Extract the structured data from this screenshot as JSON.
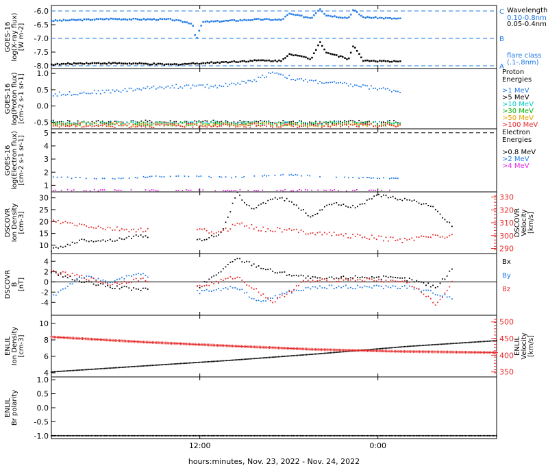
{
  "figure": {
    "time_axis": {
      "start": "2022-11-23T02:00",
      "end": "2022-11-24T08:00",
      "tick_labels": [
        "12:00",
        "0:00"
      ],
      "tick_times": [
        "2022-11-23T12:00",
        "2022-11-24T00:00"
      ],
      "xlabel": "hours:minutes, Nov. 23, 2022 - Nov. 24, 2022"
    }
  },
  "chart_data": [
    {
      "type": "line",
      "panel": "xray",
      "ylabel": [
        "GOES-16",
        "log(X-ray flux)",
        "[W m-2]"
      ],
      "ylim": [
        -8.1,
        -5.8
      ],
      "yticks": [
        "-6.0",
        "-6.5",
        "-7.0",
        "-7.5",
        "-8.0"
      ],
      "reference_lines": [
        {
          "y": -6.0,
          "label": "C"
        },
        {
          "y": -7.0,
          "label": "B"
        },
        {
          "y": -8.0,
          "label": "A"
        }
      ],
      "legend": [
        "Wavelength",
        "0.10-0.8nm",
        "0.05-0.4nm",
        "flare class",
        "(.1-.8nm)"
      ],
      "series": [
        {
          "name": "0.10-0.8nm",
          "color": "#1e78e6",
          "x": [
            "2022-11-23T02:00",
            "2022-11-23T04:00",
            "2022-11-23T06:00",
            "2022-11-23T08:00",
            "2022-11-23T10:00",
            "2022-11-23T11:30",
            "2022-11-23T11:45",
            "2022-11-23T12:10",
            "2022-11-23T14:00",
            "2022-11-23T16:00",
            "2022-11-23T17:30",
            "2022-11-23T18:00",
            "2022-11-23T19:30",
            "2022-11-23T20:05",
            "2022-11-23T20:30",
            "2022-11-23T22:00",
            "2022-11-23T22:20",
            "2022-11-23T23:00",
            "2022-11-24T01:30"
          ],
          "y": [
            -6.35,
            -6.32,
            -6.28,
            -6.3,
            -6.3,
            -6.45,
            -7.05,
            -6.4,
            -6.35,
            -6.3,
            -6.32,
            -6.1,
            -6.25,
            -5.9,
            -6.15,
            -6.25,
            -5.95,
            -6.22,
            -6.28
          ]
        },
        {
          "name": "0.05-0.4nm",
          "color": "#000000",
          "x": [
            "2022-11-23T02:00",
            "2022-11-23T04:00",
            "2022-11-23T06:00",
            "2022-11-23T08:00",
            "2022-11-23T10:00",
            "2022-11-23T12:00",
            "2022-11-23T14:00",
            "2022-11-23T16:00",
            "2022-11-23T17:30",
            "2022-11-23T18:00",
            "2022-11-23T19:30",
            "2022-11-23T20:05",
            "2022-11-23T20:30",
            "2022-11-23T22:00",
            "2022-11-23T22:20",
            "2022-11-23T23:00",
            "2022-11-24T01:30"
          ],
          "y": [
            -7.95,
            -7.9,
            -7.9,
            -7.92,
            -7.95,
            -7.9,
            -7.85,
            -7.8,
            -7.82,
            -7.55,
            -7.75,
            -7.1,
            -7.5,
            -7.75,
            -7.25,
            -7.8,
            -7.85
          ]
        }
      ]
    },
    {
      "type": "scatter",
      "panel": "proton",
      "ylabel": [
        "GOES-16",
        "log(Proton flux)",
        "[cm-2 s-1 sr-1]"
      ],
      "ylim": [
        -0.7,
        1.15
      ],
      "yticks": [
        "1.0",
        "0.5",
        "0.0",
        "-0.5"
      ],
      "legend_title": [
        "Proton",
        "Energies"
      ],
      "series": [
        {
          "name": ">1 MeV",
          "color": "#1e78e6",
          "x": [
            "2022-11-23T02:00",
            "2022-11-23T06:00",
            "2022-11-23T10:00",
            "2022-11-23T13:00",
            "2022-11-23T15:30",
            "2022-11-23T17:00",
            "2022-11-23T18:30",
            "2022-11-23T21:00",
            "2022-11-23T23:00",
            "2022-11-24T01:30"
          ],
          "y": [
            0.35,
            0.45,
            0.6,
            0.6,
            0.75,
            1.05,
            0.8,
            0.7,
            0.6,
            0.45
          ]
        },
        {
          "name": ">5 MeV",
          "color": "#000000",
          "x": [
            "2022-11-23T02:00",
            "2022-11-24T01:30"
          ],
          "y": [
            -0.5,
            -0.5
          ]
        },
        {
          "name": ">10 MeV",
          "color": "#00c8c8",
          "x": [
            "2022-11-23T02:00",
            "2022-11-24T01:30"
          ],
          "y": [
            -0.52,
            -0.52
          ]
        },
        {
          "name": ">30 MeV",
          "color": "#00b400",
          "x": [
            "2022-11-23T02:00",
            "2022-11-24T01:30"
          ],
          "y": [
            -0.55,
            -0.55
          ]
        },
        {
          "name": ">50 MeV",
          "color": "#e6a000",
          "x": [
            "2022-11-23T02:00",
            "2022-11-24T01:30"
          ],
          "y": [
            -0.57,
            -0.57
          ]
        },
        {
          "name": ">100 MeV",
          "color": "#e62828",
          "x": [
            "2022-11-23T02:00",
            "2022-11-24T01:30"
          ],
          "y": [
            -0.6,
            -0.6
          ]
        }
      ]
    },
    {
      "type": "scatter",
      "panel": "electron",
      "ylabel": [
        "GOES-16",
        "log(Electron flux)",
        "[cm-2 s-1 sr-1]"
      ],
      "ylim": [
        0.5,
        5.3
      ],
      "yticks": [
        "5",
        "4",
        "3",
        "2",
        "1"
      ],
      "reference_lines": [
        {
          "y": 5.0
        }
      ],
      "legend_title": [
        "Electron",
        "Energies"
      ],
      "series": [
        {
          "name": ">0.8 MeV",
          "color": "#000000",
          "x": [],
          "y": []
        },
        {
          "name": ">2 MeV",
          "color": "#1e78e6",
          "x": [
            "2022-11-23T02:00",
            "2022-11-23T06:00",
            "2022-11-23T10:00",
            "2022-11-23T14:00",
            "2022-11-23T18:00",
            "2022-11-23T22:00",
            "2022-11-24T01:30"
          ],
          "y": [
            1.6,
            1.5,
            1.7,
            1.6,
            1.8,
            1.6,
            1.5
          ]
        },
        {
          "name": ">4 MeV",
          "color": "#e628e6",
          "x": [
            "2022-11-23T02:00",
            "2022-11-24T01:30"
          ],
          "y": [
            0.62,
            0.62
          ]
        }
      ]
    },
    {
      "type": "scatter",
      "panel": "dscovr_density",
      "ylabel": [
        "DSCOVR",
        "Ion Density",
        "[cm-3]"
      ],
      "ylim": [
        6.5,
        32.5
      ],
      "yticks": [
        "30",
        "25",
        "20",
        "15",
        "10"
      ],
      "y2label": [
        "DSCOVR",
        "Velocity",
        "[km/s]"
      ],
      "y2lim": [
        286,
        334
      ],
      "y2ticks": [
        "330",
        "320",
        "310",
        "300",
        "290"
      ],
      "series": [
        {
          "name": "Ion Density",
          "color": "#000000",
          "x": [
            "2022-11-23T02:00",
            "2022-11-23T04:00",
            "2022-11-23T06:00",
            "2022-11-23T08:00",
            "2022-11-23T12:00",
            "2022-11-23T13:30",
            "2022-11-23T14:30",
            "2022-11-23T15:30",
            "2022-11-23T17:00",
            "2022-11-23T18:00",
            "2022-11-23T19:30",
            "2022-11-23T21:00",
            "2022-11-23T22:30",
            "2022-11-24T00:00",
            "2022-11-24T02:00",
            "2022-11-24T03:30",
            "2022-11-24T05:00"
          ],
          "y": [
            8,
            12,
            12,
            14,
            12,
            15,
            32,
            25,
            30,
            29,
            22,
            28,
            26,
            31,
            29,
            27,
            18
          ]
        },
        {
          "name": "Velocity",
          "color": "#e62828",
          "axis": "y2",
          "x": [
            "2022-11-23T02:00",
            "2022-11-23T04:00",
            "2022-11-23T06:00",
            "2022-11-23T08:00",
            "2022-11-23T12:00",
            "2022-11-23T13:30",
            "2022-11-23T14:30",
            "2022-11-23T16:00",
            "2022-11-23T18:00",
            "2022-11-23T20:00",
            "2022-11-23T22:00",
            "2022-11-24T00:00",
            "2022-11-24T02:00",
            "2022-11-24T03:00",
            "2022-11-24T05:00"
          ],
          "y": [
            311,
            308,
            305,
            304,
            304,
            302,
            310,
            305,
            304,
            302,
            300,
            298,
            296,
            300,
            299
          ]
        }
      ]
    },
    {
      "type": "scatter",
      "panel": "dscovr_field",
      "ylabel": [
        "DSCOVR",
        "B",
        "[nT]"
      ],
      "ylim": [
        -6.5,
        5.5
      ],
      "yticks": [
        "4",
        "2",
        "0",
        "-2",
        "-4"
      ],
      "reference_lines": [
        {
          "y": 0
        }
      ],
      "series": [
        {
          "name": "Bx",
          "color": "#000000",
          "x": [
            "2022-11-23T02:00",
            "2022-11-23T04:00",
            "2022-11-23T06:00",
            "2022-11-23T08:00",
            "2022-11-23T12:00",
            "2022-11-23T14:30",
            "2022-11-23T17:00",
            "2022-11-23T20:00",
            "2022-11-23T23:00",
            "2022-11-24T02:00",
            "2022-11-24T04:00",
            "2022-11-24T05:00"
          ],
          "y": [
            2,
            0,
            -1,
            -1.5,
            -1,
            4.5,
            2,
            0.5,
            1,
            0.5,
            -1,
            2.5
          ]
        },
        {
          "name": "By",
          "color": "#1e78e6",
          "x": [
            "2022-11-23T02:00",
            "2022-11-23T04:00",
            "2022-11-23T06:00",
            "2022-11-23T08:00",
            "2022-11-23T12:00",
            "2022-11-23T14:30",
            "2022-11-23T16:00",
            "2022-11-23T18:00",
            "2022-11-23T20:00",
            "2022-11-23T23:00",
            "2022-11-24T02:00",
            "2022-11-24T05:00"
          ],
          "y": [
            -3,
            1,
            0,
            1.5,
            -2,
            -1,
            -4,
            -2,
            -1,
            -1,
            -1,
            -3
          ]
        },
        {
          "name": "Bz",
          "color": "#e62828",
          "x": [
            "2022-11-23T02:00",
            "2022-11-23T04:00",
            "2022-11-23T06:00",
            "2022-11-23T08:00",
            "2022-11-23T12:00",
            "2022-11-23T14:30",
            "2022-11-23T16:00",
            "2022-11-23T17:00",
            "2022-11-23T19:00",
            "2022-11-23T22:00",
            "2022-11-24T02:00",
            "2022-11-24T04:00",
            "2022-11-24T05:00"
          ],
          "y": [
            2,
            1,
            -0.5,
            0.5,
            -1,
            1,
            -2,
            -4,
            0,
            0.5,
            0,
            -4.5,
            0
          ]
        }
      ]
    },
    {
      "type": "line",
      "panel": "enlil_density",
      "ylabel": [
        "ENLIL",
        "Ion Density",
        "[cm-3]"
      ],
      "ylim": [
        3.5,
        11
      ],
      "yticks": [
        "10",
        "8",
        "6",
        "4"
      ],
      "y2label": [
        "ENLIL",
        "Velocity",
        "[km/s]"
      ],
      "y2lim": [
        335,
        520
      ],
      "y2ticks": [
        "500",
        "450",
        "400",
        "350"
      ],
      "series": [
        {
          "name": "Ion Density",
          "color": "#000000",
          "x": [
            "2022-11-23T02:00",
            "2022-11-23T08:00",
            "2022-11-23T14:00",
            "2022-11-23T20:00",
            "2022-11-24T02:00",
            "2022-11-24T08:00"
          ],
          "y": [
            4.1,
            4.8,
            5.5,
            6.3,
            7.2,
            7.9
          ]
        },
        {
          "name": "Velocity",
          "color": "#e62828",
          "axis": "y2",
          "x": [
            "2022-11-23T02:00",
            "2022-11-23T08:00",
            "2022-11-23T14:00",
            "2022-11-23T20:00",
            "2022-11-24T02:00",
            "2022-11-24T08:00"
          ],
          "y": [
            455,
            440,
            428,
            417,
            411,
            408
          ]
        }
      ]
    },
    {
      "type": "line",
      "panel": "enlil_polarity",
      "ylabel": [
        "ENLIL",
        "Br polarity"
      ],
      "ylim": [
        -1.1,
        1.1
      ],
      "yticks": [
        "1.0",
        "0.5",
        "0.0",
        "-0.5",
        "-1.0"
      ],
      "series": [
        {
          "name": "Br polarity",
          "color": "#000000",
          "x": [
            "2022-11-23T02:00",
            "2022-11-24T08:00"
          ],
          "y": [
            -1,
            -1
          ]
        }
      ]
    }
  ]
}
